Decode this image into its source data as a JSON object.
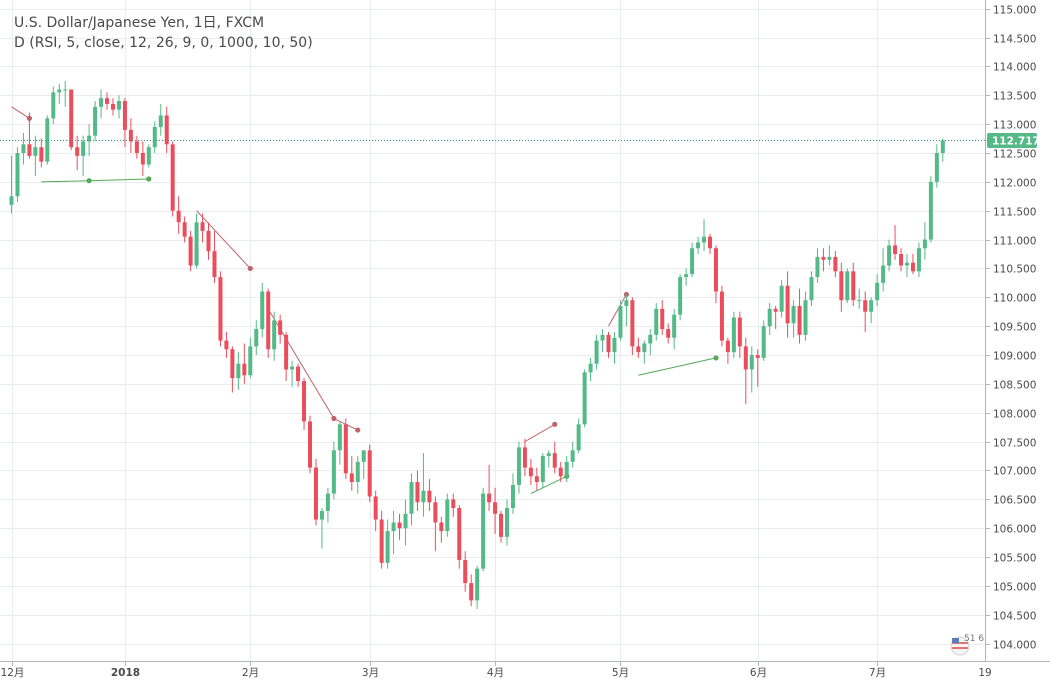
{
  "header": {
    "symbol_line": "U.S. Dollar/Japanese Yen, 1日, FXCM",
    "indicator_line": "D (RSI, 5, close, 12, 26, 9, 0, 1000, 10, 50)"
  },
  "price_label": "112.717",
  "logo_text": "51 6",
  "last_tick_label": "19",
  "colors": {
    "up": "#53b987",
    "down": "#eb4d5c",
    "bear_divergence": "#c0626b",
    "bull_divergence": "#55a85a",
    "grid": "#e9edf2",
    "current_price_line": "#2e9a6e"
  },
  "chart_data": {
    "type": "candlestick",
    "title": "U.S. Dollar/Japanese Yen, 1日, FXCM",
    "ylim": [
      103.7,
      115.15
    ],
    "y_ticks": [
      104.0,
      104.5,
      105.0,
      105.5,
      106.0,
      106.5,
      107.0,
      107.5,
      108.0,
      108.5,
      109.0,
      109.5,
      110.0,
      110.5,
      111.0,
      111.5,
      112.0,
      112.5,
      113.0,
      113.5,
      114.0,
      114.5,
      115.0
    ],
    "y_tick_labels": [
      "104.000",
      "104.500",
      "105.000",
      "105.500",
      "106.000",
      "106.500",
      "107.000",
      "107.500",
      "108.000",
      "108.500",
      "109.000",
      "109.500",
      "110.000",
      "110.500",
      "111.000",
      "111.500",
      "112.000",
      "112.500",
      "113.000",
      "113.500",
      "114.000",
      "114.500",
      "115.000"
    ],
    "x_ticks": [
      {
        "label": "12月",
        "index": 0,
        "bold": false
      },
      {
        "label": "2018",
        "index": 19,
        "bold": true
      },
      {
        "label": "2月",
        "index": 40,
        "bold": false
      },
      {
        "label": "3月",
        "index": 60,
        "bold": false
      },
      {
        "label": "4月",
        "index": 81,
        "bold": false
      },
      {
        "label": "5月",
        "index": 102,
        "bold": false
      },
      {
        "label": "6月",
        "index": 125,
        "bold": false
      },
      {
        "label": "7月",
        "index": 145,
        "bold": false
      }
    ],
    "current_price": 112.717,
    "candles": [
      [
        111.6,
        112.45,
        111.45,
        111.75
      ],
      [
        111.75,
        112.6,
        111.65,
        112.5
      ],
      [
        112.5,
        112.85,
        112.3,
        112.65
      ],
      [
        112.65,
        113.2,
        112.4,
        112.45
      ],
      [
        112.45,
        112.8,
        112.1,
        112.6
      ],
      [
        112.6,
        112.75,
        112.25,
        112.35
      ],
      [
        112.35,
        113.15,
        112.3,
        113.1
      ],
      [
        113.1,
        113.65,
        113.0,
        113.55
      ],
      [
        113.55,
        113.7,
        113.35,
        113.6
      ],
      [
        113.6,
        113.75,
        113.3,
        113.6
      ],
      [
        113.6,
        113.6,
        112.55,
        112.6
      ],
      [
        112.6,
        112.8,
        112.2,
        112.45
      ],
      [
        112.45,
        112.8,
        112.1,
        112.7
      ],
      [
        112.7,
        113.0,
        112.45,
        112.8
      ],
      [
        112.8,
        113.4,
        112.7,
        113.3
      ],
      [
        113.3,
        113.6,
        113.1,
        113.45
      ],
      [
        113.45,
        113.55,
        113.25,
        113.35
      ],
      [
        113.35,
        113.45,
        113.15,
        113.25
      ],
      [
        113.25,
        113.5,
        113.1,
        113.4
      ],
      [
        113.4,
        113.45,
        112.6,
        112.9
      ],
      [
        112.9,
        113.1,
        112.5,
        112.7
      ],
      [
        112.7,
        112.8,
        112.4,
        112.5
      ],
      [
        112.5,
        112.7,
        112.1,
        112.3
      ],
      [
        112.3,
        112.65,
        112.25,
        112.6
      ],
      [
        112.6,
        113.05,
        112.5,
        112.95
      ],
      [
        112.95,
        113.35,
        112.8,
        113.15
      ],
      [
        113.15,
        113.3,
        112.5,
        112.65
      ],
      [
        112.65,
        112.7,
        111.4,
        111.5
      ],
      [
        111.5,
        111.75,
        111.1,
        111.3
      ],
      [
        111.3,
        111.4,
        110.95,
        111.05
      ],
      [
        111.05,
        111.15,
        110.45,
        110.55
      ],
      [
        110.55,
        111.45,
        110.5,
        111.3
      ],
      [
        111.3,
        111.45,
        110.95,
        111.15
      ],
      [
        111.15,
        111.3,
        110.65,
        110.8
      ],
      [
        110.8,
        111.15,
        110.25,
        110.35
      ],
      [
        110.35,
        110.45,
        109.15,
        109.25
      ],
      [
        109.25,
        109.4,
        108.95,
        109.1
      ],
      [
        109.1,
        109.15,
        108.35,
        108.6
      ],
      [
        108.6,
        109.05,
        108.4,
        108.85
      ],
      [
        108.85,
        109.2,
        108.5,
        108.65
      ],
      [
        108.65,
        109.3,
        108.6,
        109.15
      ],
      [
        109.15,
        109.6,
        109.0,
        109.45
      ],
      [
        109.45,
        110.25,
        109.3,
        110.1
      ],
      [
        110.1,
        110.15,
        108.95,
        109.1
      ],
      [
        109.1,
        109.75,
        108.9,
        109.6
      ],
      [
        109.6,
        109.7,
        109.2,
        109.35
      ],
      [
        109.35,
        109.4,
        108.55,
        108.75
      ],
      [
        108.75,
        108.9,
        108.45,
        108.8
      ],
      [
        108.8,
        108.85,
        108.45,
        108.55
      ],
      [
        108.55,
        108.6,
        107.7,
        107.85
      ],
      [
        107.85,
        107.95,
        106.95,
        107.05
      ],
      [
        107.05,
        107.2,
        106.05,
        106.15
      ],
      [
        106.15,
        106.35,
        105.65,
        106.3
      ],
      [
        106.3,
        106.7,
        106.1,
        106.6
      ],
      [
        106.6,
        107.5,
        106.5,
        107.35
      ],
      [
        107.35,
        107.85,
        107.1,
        107.8
      ],
      [
        107.8,
        107.9,
        106.85,
        106.95
      ],
      [
        106.95,
        107.25,
        106.65,
        106.8
      ],
      [
        106.8,
        107.25,
        106.6,
        107.15
      ],
      [
        107.15,
        107.35,
        106.85,
        107.35
      ],
      [
        107.35,
        107.45,
        106.45,
        106.55
      ],
      [
        106.55,
        106.65,
        105.95,
        106.15
      ],
      [
        106.15,
        106.3,
        105.3,
        105.4
      ],
      [
        105.4,
        106.15,
        105.3,
        105.95
      ],
      [
        105.95,
        106.3,
        105.55,
        106.1
      ],
      [
        106.1,
        106.25,
        105.8,
        106.0
      ],
      [
        106.0,
        106.5,
        105.7,
        106.25
      ],
      [
        106.25,
        106.95,
        106.05,
        106.8
      ],
      [
        106.8,
        107.0,
        106.3,
        106.45
      ],
      [
        106.45,
        107.3,
        106.2,
        106.65
      ],
      [
        106.65,
        106.85,
        106.3,
        106.45
      ],
      [
        106.45,
        106.55,
        105.6,
        106.1
      ],
      [
        106.1,
        106.2,
        105.75,
        105.95
      ],
      [
        105.95,
        106.6,
        105.85,
        106.5
      ],
      [
        106.5,
        106.6,
        106.2,
        106.35
      ],
      [
        106.35,
        106.4,
        105.3,
        105.45
      ],
      [
        105.45,
        105.6,
        104.9,
        105.05
      ],
      [
        105.05,
        105.2,
        104.65,
        104.75
      ],
      [
        104.75,
        105.35,
        104.6,
        105.3
      ],
      [
        105.3,
        106.7,
        105.25,
        106.6
      ],
      [
        106.6,
        107.1,
        106.3,
        106.45
      ],
      [
        106.45,
        106.7,
        105.9,
        106.25
      ],
      [
        106.25,
        106.3,
        105.75,
        105.85
      ],
      [
        105.85,
        106.5,
        105.7,
        106.35
      ],
      [
        106.35,
        106.95,
        106.25,
        106.75
      ],
      [
        106.75,
        107.5,
        106.6,
        107.4
      ],
      [
        107.4,
        107.55,
        106.9,
        107.05
      ],
      [
        107.05,
        107.2,
        106.75,
        106.9
      ],
      [
        106.9,
        107.05,
        106.65,
        106.8
      ],
      [
        106.8,
        107.3,
        106.7,
        107.25
      ],
      [
        107.25,
        107.35,
        107.05,
        107.3
      ],
      [
        107.3,
        107.5,
        106.95,
        107.05
      ],
      [
        107.05,
        107.15,
        106.8,
        106.9
      ],
      [
        106.9,
        107.25,
        106.8,
        107.15
      ],
      [
        107.15,
        107.5,
        107.05,
        107.35
      ],
      [
        107.35,
        107.9,
        107.3,
        107.8
      ],
      [
        107.8,
        108.75,
        107.75,
        108.7
      ],
      [
        108.7,
        108.95,
        108.55,
        108.85
      ],
      [
        108.85,
        109.35,
        108.75,
        109.25
      ],
      [
        109.25,
        109.45,
        109.05,
        109.35
      ],
      [
        109.35,
        109.4,
        108.95,
        109.05
      ],
      [
        109.05,
        109.4,
        108.85,
        109.3
      ],
      [
        109.3,
        109.95,
        109.25,
        109.85
      ],
      [
        109.85,
        110.05,
        109.5,
        109.95
      ],
      [
        109.95,
        110.0,
        109.0,
        109.15
      ],
      [
        109.15,
        109.3,
        108.95,
        109.05
      ],
      [
        109.05,
        109.25,
        108.85,
        109.2
      ],
      [
        109.2,
        109.45,
        109.0,
        109.35
      ],
      [
        109.35,
        109.9,
        109.25,
        109.8
      ],
      [
        109.8,
        109.95,
        109.35,
        109.45
      ],
      [
        109.45,
        109.55,
        109.2,
        109.3
      ],
      [
        109.3,
        109.8,
        109.1,
        109.7
      ],
      [
        109.7,
        110.4,
        109.6,
        110.35
      ],
      [
        110.35,
        110.5,
        110.2,
        110.4
      ],
      [
        110.4,
        110.95,
        110.35,
        110.85
      ],
      [
        110.85,
        111.05,
        110.75,
        110.95
      ],
      [
        110.95,
        111.35,
        110.8,
        111.05
      ],
      [
        111.05,
        111.1,
        110.75,
        110.85
      ],
      [
        110.85,
        110.9,
        109.9,
        110.1
      ],
      [
        110.1,
        110.2,
        109.15,
        109.25
      ],
      [
        109.25,
        109.3,
        108.85,
        109.05
      ],
      [
        109.05,
        109.75,
        108.95,
        109.65
      ],
      [
        109.65,
        109.75,
        108.95,
        109.15
      ],
      [
        109.15,
        109.3,
        108.15,
        108.75
      ],
      [
        108.75,
        109.15,
        108.35,
        109.0
      ],
      [
        109.0,
        109.1,
        108.45,
        108.95
      ],
      [
        108.95,
        109.6,
        108.9,
        109.5
      ],
      [
        109.5,
        109.9,
        109.35,
        109.8
      ],
      [
        109.8,
        109.85,
        109.45,
        109.75
      ],
      [
        109.75,
        110.3,
        109.65,
        110.2
      ],
      [
        110.2,
        110.45,
        109.3,
        109.55
      ],
      [
        109.55,
        109.95,
        109.3,
        109.85
      ],
      [
        109.85,
        110.15,
        109.2,
        109.35
      ],
      [
        109.35,
        110.1,
        109.25,
        109.95
      ],
      [
        109.95,
        110.45,
        109.85,
        110.35
      ],
      [
        110.35,
        110.85,
        110.25,
        110.7
      ],
      [
        110.7,
        110.85,
        110.45,
        110.65
      ],
      [
        110.65,
        110.9,
        110.55,
        110.7
      ],
      [
        110.7,
        110.8,
        110.35,
        110.45
      ],
      [
        110.45,
        110.6,
        109.75,
        109.95
      ],
      [
        109.95,
        110.5,
        109.9,
        110.45
      ],
      [
        110.45,
        110.6,
        109.85,
        109.95
      ],
      [
        109.95,
        110.15,
        109.8,
        109.95
      ],
      [
        109.95,
        110.1,
        109.4,
        109.75
      ],
      [
        109.75,
        110.0,
        109.55,
        109.95
      ],
      [
        109.95,
        110.4,
        109.85,
        110.25
      ],
      [
        110.25,
        110.85,
        110.1,
        110.55
      ],
      [
        110.55,
        111.0,
        110.45,
        110.9
      ],
      [
        110.9,
        111.25,
        110.65,
        110.75
      ],
      [
        110.75,
        110.85,
        110.45,
        110.55
      ],
      [
        110.55,
        110.75,
        110.35,
        110.6
      ],
      [
        110.6,
        110.75,
        110.4,
        110.45
      ],
      [
        110.45,
        110.95,
        110.35,
        110.85
      ],
      [
        110.85,
        111.3,
        110.65,
        111.0
      ],
      [
        111.0,
        112.1,
        110.95,
        112.0
      ],
      [
        112.0,
        112.65,
        111.9,
        112.5
      ],
      [
        112.5,
        112.75,
        112.35,
        112.717
      ]
    ],
    "divergences": [
      {
        "kind": "bearish",
        "from_index": 0,
        "to_index": 3,
        "from_price": 113.3,
        "to_price": 113.1
      },
      {
        "kind": "bullish",
        "from_index": 5,
        "to_index": 13,
        "from_price": 112.0,
        "to_price": 112.02
      },
      {
        "kind": "bullish",
        "from_index": 13,
        "to_index": 23,
        "from_price": 112.02,
        "to_price": 112.05
      },
      {
        "kind": "bearish",
        "from_index": 31,
        "to_index": 40,
        "from_price": 111.5,
        "to_price": 110.5
      },
      {
        "kind": "bearish",
        "from_index": 43,
        "to_index": 54,
        "from_price": 109.8,
        "to_price": 107.9
      },
      {
        "kind": "bearish",
        "from_index": 54,
        "to_index": 58,
        "from_price": 107.9,
        "to_price": 107.7
      },
      {
        "kind": "bearish",
        "from_index": 86,
        "to_index": 91,
        "from_price": 107.5,
        "to_price": 107.8
      },
      {
        "kind": "bullish",
        "from_index": 87,
        "to_index": 93,
        "from_price": 106.6,
        "to_price": 106.9
      },
      {
        "kind": "bearish",
        "from_index": 100,
        "to_index": 103,
        "from_price": 109.5,
        "to_price": 110.05
      },
      {
        "kind": "bullish",
        "from_index": 105,
        "to_index": 118,
        "from_price": 108.65,
        "to_price": 108.95
      }
    ]
  }
}
